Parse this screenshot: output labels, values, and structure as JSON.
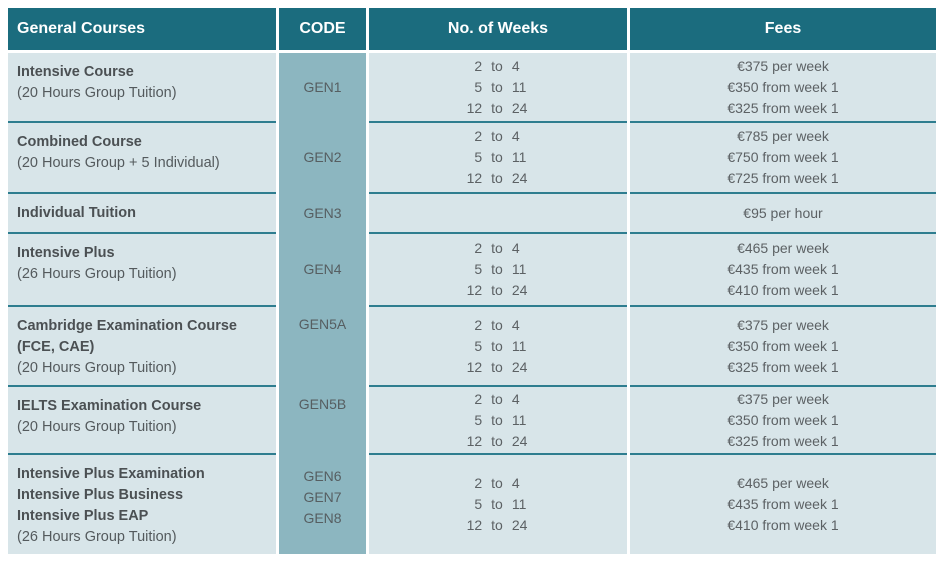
{
  "header": {
    "course": "General Courses",
    "code": "CODE",
    "weeks": "No. of Weeks",
    "fees": "Fees"
  },
  "labels": {
    "to": "to"
  },
  "colors": {
    "header_bg": "#1b6c7e",
    "code_column_bg": "#8cb6c0",
    "row_bg": "#d8e5e9",
    "separator_line": "#2e7d8f",
    "header_text": "#ffffff",
    "body_text": "#585d60"
  },
  "rows": [
    {
      "names": [
        "Intensive Course"
      ],
      "subtitle": "(20 Hours Group Tuition)",
      "codes": [
        "GEN1"
      ],
      "weeks": [
        {
          "from": "2",
          "to": "4"
        },
        {
          "from": "5",
          "to": "11"
        },
        {
          "from": "12",
          "to": "24"
        }
      ],
      "fees": [
        "€375 per week",
        "€350 from week 1",
        "€325 from week 1"
      ]
    },
    {
      "names": [
        "Combined Course"
      ],
      "subtitle": "(20 Hours Group + 5 Individual)",
      "codes": [
        "GEN2"
      ],
      "weeks": [
        {
          "from": "2",
          "to": "4"
        },
        {
          "from": "5",
          "to": "11"
        },
        {
          "from": "12",
          "to": "24"
        }
      ],
      "fees": [
        "€785 per week",
        "€750 from week 1",
        "€725 from week 1"
      ]
    },
    {
      "names": [
        "Individual Tuition"
      ],
      "subtitle": "",
      "codes": [
        "GEN3"
      ],
      "weeks": [],
      "fees": [
        "€95 per hour"
      ]
    },
    {
      "names": [
        "Intensive Plus"
      ],
      "subtitle": "(26 Hours Group Tuition)",
      "codes": [
        "GEN4"
      ],
      "weeks": [
        {
          "from": "2",
          "to": "4"
        },
        {
          "from": "5",
          "to": "11"
        },
        {
          "from": "12",
          "to": "24"
        }
      ],
      "fees": [
        "€465 per week",
        "€435 from week 1",
        "€410 from week 1"
      ]
    },
    {
      "names": [
        "Cambridge Examination Course",
        "(FCE, CAE)"
      ],
      "subtitle": "(20 Hours Group Tuition)",
      "codes": [
        "GEN5A"
      ],
      "weeks": [
        {
          "from": "2",
          "to": "4"
        },
        {
          "from": "5",
          "to": "11"
        },
        {
          "from": "12",
          "to": "24"
        }
      ],
      "fees": [
        "€375 per week",
        "€350 from week 1",
        "€325 from week 1"
      ]
    },
    {
      "names": [
        "IELTS Examination Course"
      ],
      "subtitle": "(20 Hours Group Tuition)",
      "codes": [
        "GEN5B"
      ],
      "weeks": [
        {
          "from": "2",
          "to": "4"
        },
        {
          "from": "5",
          "to": "11"
        },
        {
          "from": "12",
          "to": "24"
        }
      ],
      "fees": [
        "€375 per week",
        "€350 from week 1",
        "€325 from week 1"
      ]
    },
    {
      "names": [
        "Intensive Plus Examination",
        "Intensive Plus Business",
        "Intensive Plus EAP"
      ],
      "subtitle": "(26 Hours Group Tuition)",
      "codes": [
        "GEN6",
        "GEN7",
        "GEN8"
      ],
      "weeks": [
        {
          "from": "2",
          "to": "4"
        },
        {
          "from": "5",
          "to": "11"
        },
        {
          "from": "12",
          "to": "24"
        }
      ],
      "fees": [
        "€465 per week",
        "€435 from week 1",
        "€410 from week 1"
      ]
    }
  ]
}
